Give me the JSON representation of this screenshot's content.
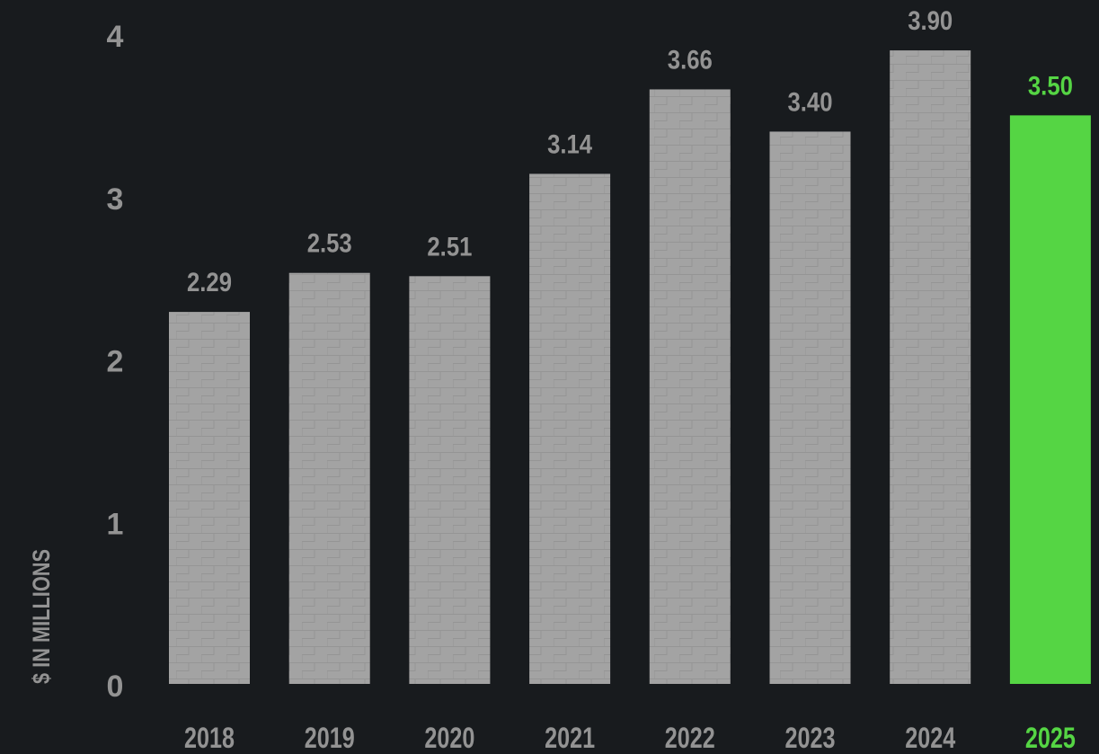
{
  "chart_data": {
    "type": "bar",
    "ylabel": "$ IN MILLIONS",
    "ylim": [
      0,
      4
    ],
    "y_ticks": [
      "0",
      "1",
      "2",
      "3",
      "4"
    ],
    "categories": [
      "2018",
      "2019",
      "2020",
      "2021",
      "2022",
      "2023",
      "2024",
      "2025"
    ],
    "values": [
      2.29,
      2.53,
      2.51,
      3.14,
      3.66,
      3.4,
      3.9,
      3.5
    ],
    "value_labels": [
      "2.29",
      "2.53",
      "2.51",
      "3.14",
      "3.66",
      "3.40",
      "3.90",
      "3.50"
    ],
    "highlight_index": 7,
    "grid": false,
    "legend": "none",
    "colors": {
      "background": "#181b1e",
      "bar": "#a3a3a3",
      "text": "#939393",
      "highlight": "#55d544"
    }
  }
}
